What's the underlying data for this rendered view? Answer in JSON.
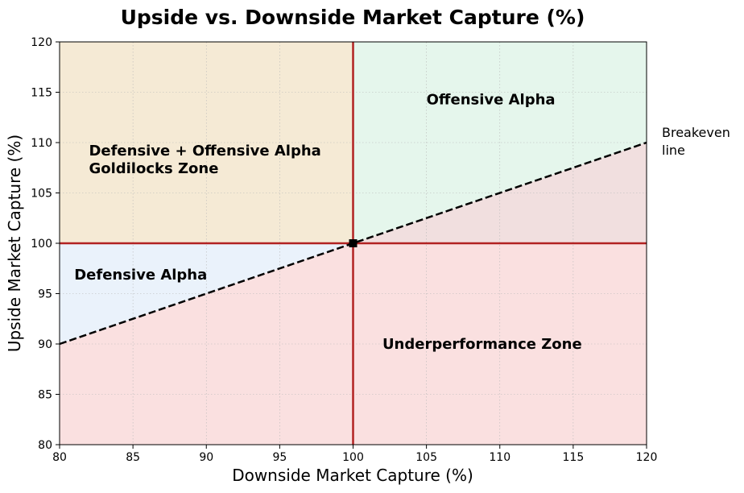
{
  "chart_data": {
    "type": "line",
    "title": "Upside vs. Downside Market Capture (%)",
    "xlabel": "Downside Market Capture (%)",
    "ylabel": "Upside Market Capture (%)",
    "xlim": [
      80,
      120
    ],
    "ylim": [
      80,
      120
    ],
    "xticks": [
      80,
      85,
      90,
      95,
      100,
      105,
      110,
      115,
      120
    ],
    "yticks": [
      80,
      85,
      90,
      95,
      100,
      105,
      110,
      115,
      120
    ],
    "grid": true,
    "series": [
      {
        "x": [
          80,
          120
        ],
        "y": [
          90,
          110
        ],
        "style": "dashed",
        "color": "#000000"
      }
    ],
    "reference_lines": [
      {
        "orientation": "vertical",
        "value": 100,
        "color": "#b22222"
      },
      {
        "orientation": "horizontal",
        "value": 100,
        "color": "#b22222"
      }
    ],
    "point": {
      "x": 100,
      "y": 100,
      "marker": "square",
      "color": "#000000"
    },
    "regions": [
      {
        "x": [
          80,
          100
        ],
        "y": [
          100,
          120
        ],
        "color": "#f5ead5"
      },
      {
        "x": [
          100,
          120
        ],
        "y": [
          100,
          120
        ],
        "color": "#e5f6ec"
      },
      {
        "x": [
          80,
          100
        ],
        "y": [
          80,
          100
        ],
        "color": "#fae0e0"
      },
      {
        "x": [
          100,
          120
        ],
        "y": [
          80,
          100
        ],
        "color": "#fae0e0"
      },
      {
        "polygon": [
          [
            80,
            90
          ],
          [
            100,
            100
          ],
          [
            80,
            100
          ]
        ],
        "color": "#eaf2fb"
      },
      {
        "polygon": [
          [
            100,
            100
          ],
          [
            120,
            110
          ],
          [
            120,
            100
          ]
        ],
        "color": "#f1dfdf"
      }
    ],
    "annotations": [
      {
        "text": "Offensive Alpha",
        "x": 105,
        "y": 114.3
      },
      {
        "lines": [
          "Defensive + Offensive Alpha",
          "Goldilocks Zone"
        ],
        "x": 82,
        "y": 109.2
      },
      {
        "text": "Defensive Alpha",
        "x": 81,
        "y": 96.9
      },
      {
        "text": "Underperformance Zone",
        "x": 102,
        "y": 90
      }
    ],
    "side_note": [
      "Breakeven",
      "line"
    ]
  }
}
